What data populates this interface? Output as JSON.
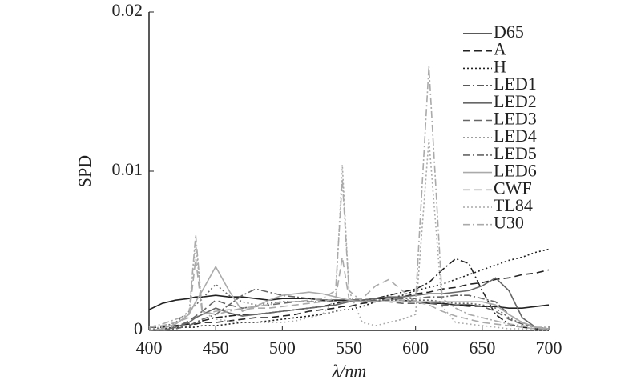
{
  "chart_data": {
    "type": "line",
    "x_label": "λ/nm",
    "y_label": "SPD",
    "xlim": [
      400,
      700
    ],
    "ylim": [
      0,
      0.02
    ],
    "xticks": [
      400,
      450,
      500,
      550,
      600,
      650,
      700
    ],
    "yticks": [
      0,
      0.01,
      0.02
    ],
    "legend": "top-right",
    "x": [
      400,
      410,
      420,
      430,
      435,
      440,
      450,
      460,
      470,
      480,
      490,
      500,
      510,
      520,
      530,
      540,
      545,
      550,
      560,
      570,
      580,
      590,
      600,
      610,
      620,
      630,
      640,
      650,
      660,
      670,
      680,
      690,
      700
    ],
    "series": [
      {
        "name": "D65",
        "color": "#222222",
        "dash": "solid",
        "values": [
          0.0013,
          0.0017,
          0.0019,
          0.002,
          0.0021,
          0.0021,
          0.0022,
          0.0021,
          0.0021,
          0.002,
          0.0019,
          0.002,
          0.002,
          0.002,
          0.0019,
          0.0019,
          0.0019,
          0.0019,
          0.0019,
          0.002,
          0.002,
          0.0019,
          0.0018,
          0.0017,
          0.0017,
          0.0016,
          0.0016,
          0.0015,
          0.0015,
          0.0014,
          0.0014,
          0.0015,
          0.0016
        ]
      },
      {
        "name": "A",
        "color": "#222222",
        "dash": "dashed",
        "values": [
          0.0002,
          0.0002,
          0.0003,
          0.0004,
          0.0004,
          0.0005,
          0.0005,
          0.0006,
          0.0007,
          0.0008,
          0.0008,
          0.0009,
          0.001,
          0.0012,
          0.0013,
          0.0014,
          0.0015,
          0.0015,
          0.0017,
          0.0018,
          0.002,
          0.0021,
          0.0023,
          0.0024,
          0.0026,
          0.0027,
          0.0029,
          0.003,
          0.0032,
          0.0033,
          0.0035,
          0.0036,
          0.0038
        ]
      },
      {
        "name": "H",
        "color": "#222222",
        "dash": "dotted",
        "values": [
          0.0001,
          0.0001,
          0.0002,
          0.0002,
          0.0002,
          0.0003,
          0.0003,
          0.0004,
          0.0005,
          0.0005,
          0.0006,
          0.0007,
          0.0008,
          0.0009,
          0.001,
          0.0012,
          0.0013,
          0.0013,
          0.0015,
          0.0018,
          0.002,
          0.0022,
          0.0025,
          0.0027,
          0.0029,
          0.0032,
          0.0035,
          0.0038,
          0.0041,
          0.0044,
          0.0046,
          0.0049,
          0.0051
        ]
      },
      {
        "name": "LED1",
        "color": "#222222",
        "dash": "dashdot",
        "values": [
          0,
          0,
          0.0001,
          0.0003,
          0.0005,
          0.0006,
          0.0008,
          0.0009,
          0.001,
          0.001,
          0.0011,
          0.0012,
          0.0013,
          0.0014,
          0.0015,
          0.0017,
          0.0018,
          0.0018,
          0.0019,
          0.002,
          0.0022,
          0.0024,
          0.0026,
          0.003,
          0.0038,
          0.0045,
          0.0042,
          0.0025,
          0.001,
          0.0004,
          0.0002,
          0.0001,
          0
        ]
      },
      {
        "name": "LED2",
        "color": "#666666",
        "dash": "solid",
        "values": [
          0,
          0,
          0.0002,
          0.0005,
          0.0008,
          0.001,
          0.0014,
          0.0011,
          0.0009,
          0.001,
          0.0011,
          0.0012,
          0.0013,
          0.0014,
          0.0015,
          0.0016,
          0.0017,
          0.0018,
          0.0019,
          0.002,
          0.0021,
          0.0021,
          0.0022,
          0.0023,
          0.0023,
          0.0024,
          0.0025,
          0.0028,
          0.0033,
          0.0025,
          0.0008,
          0.0002,
          0.0001
        ]
      },
      {
        "name": "LED3",
        "color": "#666666",
        "dash": "dashed",
        "values": [
          0,
          0,
          0.0002,
          0.0006,
          0.0009,
          0.0012,
          0.0019,
          0.0016,
          0.0014,
          0.0015,
          0.0016,
          0.0017,
          0.0018,
          0.0018,
          0.0018,
          0.0018,
          0.0018,
          0.0018,
          0.0018,
          0.0018,
          0.0018,
          0.0017,
          0.0017,
          0.0017,
          0.0016,
          0.0016,
          0.0015,
          0.0015,
          0.0012,
          0.0007,
          0.0004,
          0.0002,
          0.0001
        ]
      },
      {
        "name": "LED4",
        "color": "#666666",
        "dash": "dotted",
        "values": [
          0.0001,
          0.0002,
          0.0005,
          0.0012,
          0.0016,
          0.002,
          0.0029,
          0.0022,
          0.0018,
          0.0016,
          0.0017,
          0.0018,
          0.0018,
          0.0018,
          0.0018,
          0.0018,
          0.0018,
          0.0018,
          0.0018,
          0.0019,
          0.0019,
          0.0019,
          0.0019,
          0.0019,
          0.0018,
          0.0017,
          0.0017,
          0.0016,
          0.0014,
          0.0008,
          0.0004,
          0.0002,
          0.0001
        ]
      },
      {
        "name": "LED5",
        "color": "#666666",
        "dash": "dashdot",
        "values": [
          0,
          0,
          0.0001,
          0.0003,
          0.0005,
          0.0007,
          0.001,
          0.0016,
          0.0022,
          0.0026,
          0.0024,
          0.0022,
          0.0021,
          0.002,
          0.0019,
          0.0018,
          0.0018,
          0.0018,
          0.0018,
          0.0019,
          0.0019,
          0.002,
          0.002,
          0.0021,
          0.0021,
          0.0022,
          0.0022,
          0.002,
          0.0018,
          0.001,
          0.0005,
          0.0002,
          0
        ]
      },
      {
        "name": "LED6",
        "color": "#aaaaaa",
        "dash": "solid",
        "values": [
          0,
          0.0001,
          0.0004,
          0.001,
          0.0018,
          0.0025,
          0.004,
          0.0025,
          0.0012,
          0.0015,
          0.0019,
          0.0022,
          0.0023,
          0.0024,
          0.0023,
          0.0021,
          0.002,
          0.0019,
          0.0018,
          0.0018,
          0.0018,
          0.0018,
          0.0018,
          0.0018,
          0.0018,
          0.0018,
          0.0018,
          0.0018,
          0.0016,
          0.001,
          0.0005,
          0.0002,
          0.0001
        ]
      },
      {
        "name": "CWF",
        "color": "#aaaaaa",
        "dash": "dashed",
        "values": [
          0.0002,
          0.0003,
          0.0005,
          0.0008,
          0.0045,
          0.001,
          0.0012,
          0.0013,
          0.0013,
          0.0014,
          0.0014,
          0.0015,
          0.0016,
          0.0017,
          0.0018,
          0.002,
          0.0046,
          0.002,
          0.002,
          0.0028,
          0.0032,
          0.0025,
          0.0018,
          0.0016,
          0.0012,
          0.0009,
          0.0007,
          0.0005,
          0.0004,
          0.0003,
          0.0002,
          0.0001,
          0.0001
        ]
      },
      {
        "name": "TL84",
        "color": "#aaaaaa",
        "dash": "dotted",
        "values": [
          0.0001,
          0.0002,
          0.0004,
          0.001,
          0.0055,
          0.0012,
          0.0007,
          0.0006,
          0.0005,
          0.0005,
          0.0005,
          0.0005,
          0.0006,
          0.0008,
          0.001,
          0.002,
          0.0104,
          0.0025,
          0.0005,
          0.0003,
          0.0005,
          0.0007,
          0.001,
          0.012,
          0.0015,
          0.0005,
          0.0004,
          0.0003,
          0.0002,
          0.0001,
          0.0001,
          0,
          0
        ]
      },
      {
        "name": "U30",
        "color": "#aaaaaa",
        "dash": "dashdot",
        "values": [
          0.0002,
          0.0004,
          0.0007,
          0.001,
          0.006,
          0.0012,
          0.001,
          0.0012,
          0.0014,
          0.0015,
          0.0016,
          0.0018,
          0.0018,
          0.0019,
          0.002,
          0.0025,
          0.0095,
          0.0025,
          0.0018,
          0.0018,
          0.002,
          0.0019,
          0.0018,
          0.0166,
          0.002,
          0.0014,
          0.001,
          0.0008,
          0.0006,
          0.0004,
          0.0003,
          0.0002,
          0.0002
        ]
      }
    ]
  }
}
